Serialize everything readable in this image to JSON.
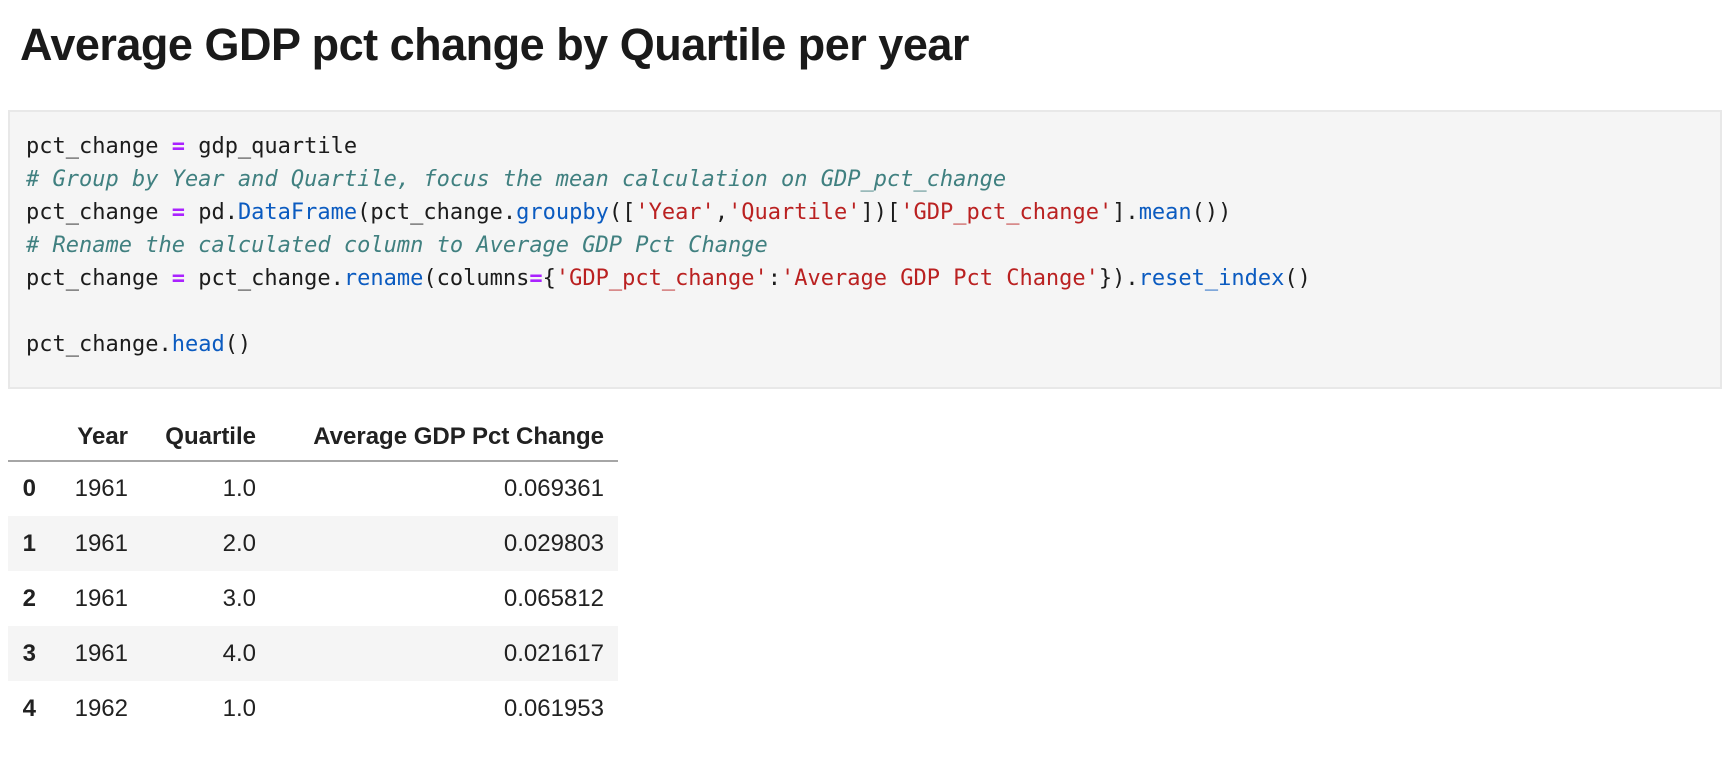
{
  "page": {
    "title": "Average GDP pct change by Quartile per year"
  },
  "colors": {
    "cell_background": "#f5f5f5",
    "cell_border": "#e8e8e8",
    "stripe_background": "#f5f5f5",
    "syntax_operator": "#aa22ff",
    "syntax_comment": "#408080",
    "syntax_string": "#ba2121",
    "syntax_function": "#0b5bc0"
  },
  "code": {
    "language": "python",
    "lines": [
      [
        {
          "text": "pct_change ",
          "type": "plain"
        },
        {
          "text": "=",
          "type": "op"
        },
        {
          "text": " gdp_quartile",
          "type": "plain"
        }
      ],
      [
        {
          "text": "# Group by Year and Quartile, focus the mean calculation on GDP_pct_change",
          "type": "comment"
        }
      ],
      [
        {
          "text": "pct_change ",
          "type": "plain"
        },
        {
          "text": "=",
          "type": "op"
        },
        {
          "text": " pd.",
          "type": "plain"
        },
        {
          "text": "DataFrame",
          "type": "func"
        },
        {
          "text": "(pct_change.",
          "type": "plain"
        },
        {
          "text": "groupby",
          "type": "func"
        },
        {
          "text": "([",
          "type": "plain"
        },
        {
          "text": "'Year'",
          "type": "string"
        },
        {
          "text": ",",
          "type": "plain"
        },
        {
          "text": "'Quartile'",
          "type": "string"
        },
        {
          "text": "])[",
          "type": "plain"
        },
        {
          "text": "'GDP_pct_change'",
          "type": "string"
        },
        {
          "text": "].",
          "type": "plain"
        },
        {
          "text": "mean",
          "type": "func"
        },
        {
          "text": "())",
          "type": "plain"
        }
      ],
      [
        {
          "text": "# Rename the calculated column to Average GDP Pct Change",
          "type": "comment"
        }
      ],
      [
        {
          "text": "pct_change ",
          "type": "plain"
        },
        {
          "text": "=",
          "type": "op"
        },
        {
          "text": " pct_change.",
          "type": "plain"
        },
        {
          "text": "rename",
          "type": "func"
        },
        {
          "text": "(columns",
          "type": "plain"
        },
        {
          "text": "=",
          "type": "op"
        },
        {
          "text": "{",
          "type": "plain"
        },
        {
          "text": "'GDP_pct_change'",
          "type": "string"
        },
        {
          "text": ":",
          "type": "plain"
        },
        {
          "text": "'Average GDP Pct Change'",
          "type": "string"
        },
        {
          "text": "}).",
          "type": "plain"
        },
        {
          "text": "reset_index",
          "type": "func"
        },
        {
          "text": "()",
          "type": "plain"
        }
      ],
      [],
      [
        {
          "text": "pct_change.",
          "type": "plain"
        },
        {
          "text": "head",
          "type": "func"
        },
        {
          "text": "()",
          "type": "plain"
        }
      ]
    ]
  },
  "table": {
    "index_header": "",
    "columns": [
      "Year",
      "Quartile",
      "Average GDP Pct Change"
    ],
    "rows": [
      {
        "index": "0",
        "cells": [
          "1961",
          "1.0",
          "0.069361"
        ]
      },
      {
        "index": "1",
        "cells": [
          "1961",
          "2.0",
          "0.029803"
        ]
      },
      {
        "index": "2",
        "cells": [
          "1961",
          "3.0",
          "0.065812"
        ]
      },
      {
        "index": "3",
        "cells": [
          "1961",
          "4.0",
          "0.021617"
        ]
      },
      {
        "index": "4",
        "cells": [
          "1962",
          "1.0",
          "0.061953"
        ]
      }
    ]
  }
}
